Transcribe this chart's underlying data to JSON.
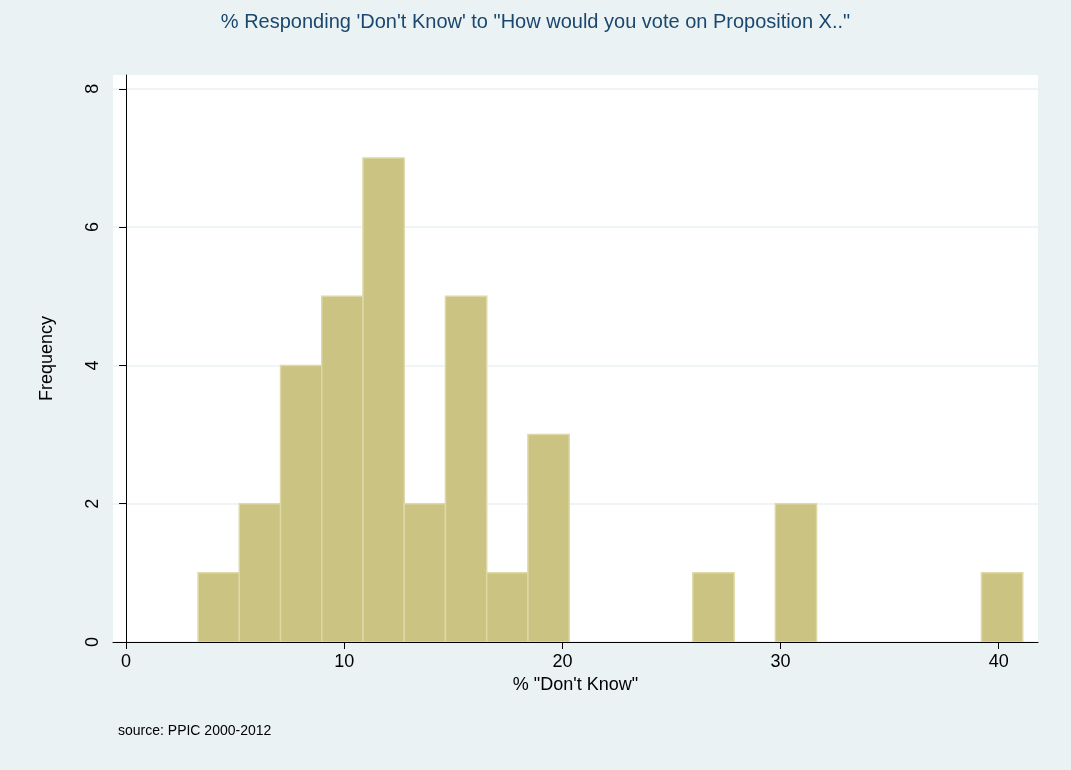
{
  "chart_data": {
    "type": "histogram",
    "title": "% Responding 'Don't Know' to \"How would you vote on Proposition X..\"",
    "xlabel": "% \"Don't Know\"",
    "ylabel": "Frequency",
    "bins": [
      3.3,
      5.19,
      7.08,
      8.97,
      10.86,
      12.75,
      14.64,
      16.53,
      18.42,
      20.31,
      22.2,
      24.09,
      25.98,
      27.87,
      29.76,
      31.65,
      33.54,
      35.43,
      37.32,
      39.21,
      41.1
    ],
    "values": [
      1,
      2,
      4,
      5,
      7,
      2,
      5,
      1,
      3,
      0,
      0,
      0,
      1,
      0,
      2,
      0,
      0,
      0,
      0,
      1
    ],
    "color": "#cbc382",
    "xlim": [
      -0.6,
      41.8
    ],
    "xticks": [
      0,
      10,
      20,
      30,
      40
    ],
    "ylim": [
      0,
      8.2
    ],
    "yticks": [
      0,
      2,
      4,
      6,
      8
    ],
    "grid": "y",
    "annotations": [
      "source: PPIC 2000-2012"
    ]
  }
}
